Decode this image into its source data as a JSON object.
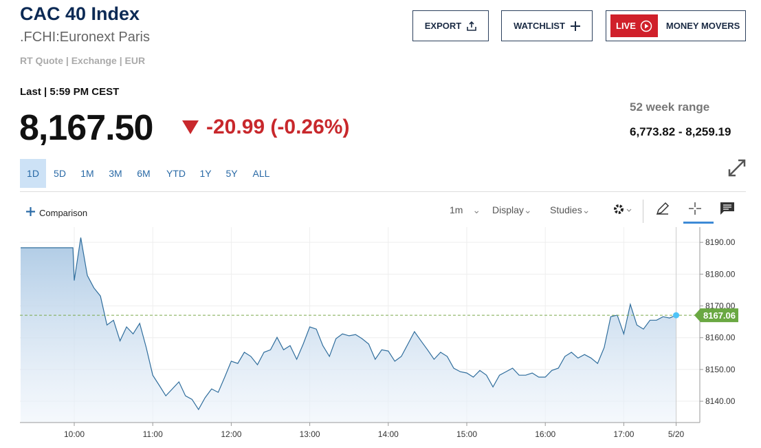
{
  "header": {
    "title": "CAC 40 Index",
    "symbol": ".FCHI:Euronext Paris",
    "quote_info": "RT Quote | Exchange | EUR",
    "last": "Last | 5:59 PM CEST",
    "price": "8,167.50",
    "change": "-20.99 (-0.26%)",
    "range_label": "52 week range",
    "range": "6,773.82 - 8,259.19"
  },
  "buttons": {
    "export": "EXPORT",
    "watchlist": "WATCHLIST",
    "live": "LIVE",
    "money_movers": "MONEY MOVERS"
  },
  "tabs": [
    "1D",
    "5D",
    "1M",
    "3M",
    "6M",
    "YTD",
    "1Y",
    "5Y",
    "ALL"
  ],
  "toolbar": {
    "comparison": "Comparison",
    "interval": "1m",
    "display": "Display",
    "studies": "Studies"
  },
  "chart_data": {
    "type": "line",
    "color": "#2f6d9c",
    "area": true,
    "grid": true,
    "x": [
      559,
      599,
      600,
      605,
      610,
      615,
      620,
      625,
      630,
      635,
      640,
      645,
      650,
      655,
      660,
      665,
      670,
      675,
      680,
      685,
      690,
      695,
      700,
      705,
      710,
      715,
      720,
      725,
      730,
      735,
      740,
      745,
      750,
      755,
      760,
      765,
      770,
      775,
      780,
      785,
      790,
      795,
      800,
      805,
      810,
      815,
      820,
      825,
      830,
      835,
      840,
      845,
      850,
      855,
      860,
      865,
      870,
      875,
      880,
      885,
      890,
      895,
      900,
      905,
      910,
      915,
      920,
      925,
      930,
      935,
      940,
      945,
      950,
      955,
      960,
      965,
      970,
      975,
      980,
      985,
      990,
      995,
      1000,
      1005,
      1010,
      1015,
      1020,
      1025,
      1030,
      1035,
      1040,
      1045,
      1050,
      1055,
      1060
    ],
    "values": [
      8188.3,
      8188.3,
      8178.0,
      8191.5,
      8179.6,
      8175.7,
      8173.1,
      8164.0,
      8165.5,
      8159.0,
      8163.4,
      8161.2,
      8164.5,
      8156.9,
      8148.2,
      8145.0,
      8141.7,
      8143.9,
      8146.1,
      8141.7,
      8140.6,
      8137.4,
      8141.1,
      8143.9,
      8142.8,
      8147.6,
      8152.6,
      8151.9,
      8155.4,
      8154.1,
      8151.5,
      8155.4,
      8156.2,
      8160.1,
      8156.2,
      8157.5,
      8153.2,
      8158.0,
      8163.4,
      8162.7,
      8157.5,
      8154.1,
      8159.7,
      8161.2,
      8160.6,
      8161.0,
      8159.7,
      8158.0,
      8153.2,
      8156.2,
      8155.8,
      8152.6,
      8154.1,
      8158.0,
      8161.9,
      8159.0,
      8156.2,
      8153.2,
      8155.4,
      8154.1,
      8150.4,
      8149.3,
      8148.9,
      8147.6,
      8149.7,
      8148.2,
      8144.5,
      8148.2,
      8149.3,
      8150.4,
      8148.2,
      8148.2,
      8148.9,
      8147.6,
      8147.6,
      8149.7,
      8150.4,
      8154.1,
      8155.4,
      8153.6,
      8154.7,
      8153.6,
      8151.9,
      8156.9,
      8166.6,
      8167.1,
      8161.2,
      8170.5,
      8164.0,
      8162.7,
      8165.5,
      8165.5,
      8166.6,
      8166.2,
      8167.06
    ],
    "xlim": [
      558.5,
      1078.1
    ],
    "xticks": [
      {
        "value": 600,
        "label": "10:00"
      },
      {
        "value": 660,
        "label": "11:00"
      },
      {
        "value": 720,
        "label": "12:00"
      },
      {
        "value": 780,
        "label": "13:00"
      },
      {
        "value": 840,
        "label": "14:00"
      },
      {
        "value": 900,
        "label": "15:00"
      },
      {
        "value": 960,
        "label": "16:00"
      },
      {
        "value": 1020,
        "label": "17:00"
      },
      {
        "value": 1060,
        "label": "5/20"
      }
    ],
    "ylim": [
      8133.3,
      8194.8
    ],
    "yticks": [
      {
        "value": 8140,
        "label": "8140.00"
      },
      {
        "value": 8150,
        "label": "8150.00"
      },
      {
        "value": 8160,
        "label": "8160.00"
      },
      {
        "value": 8170,
        "label": "8170.00"
      },
      {
        "value": 8180,
        "label": "8180.00"
      },
      {
        "value": 8190,
        "label": "8190.00"
      }
    ]
  }
}
